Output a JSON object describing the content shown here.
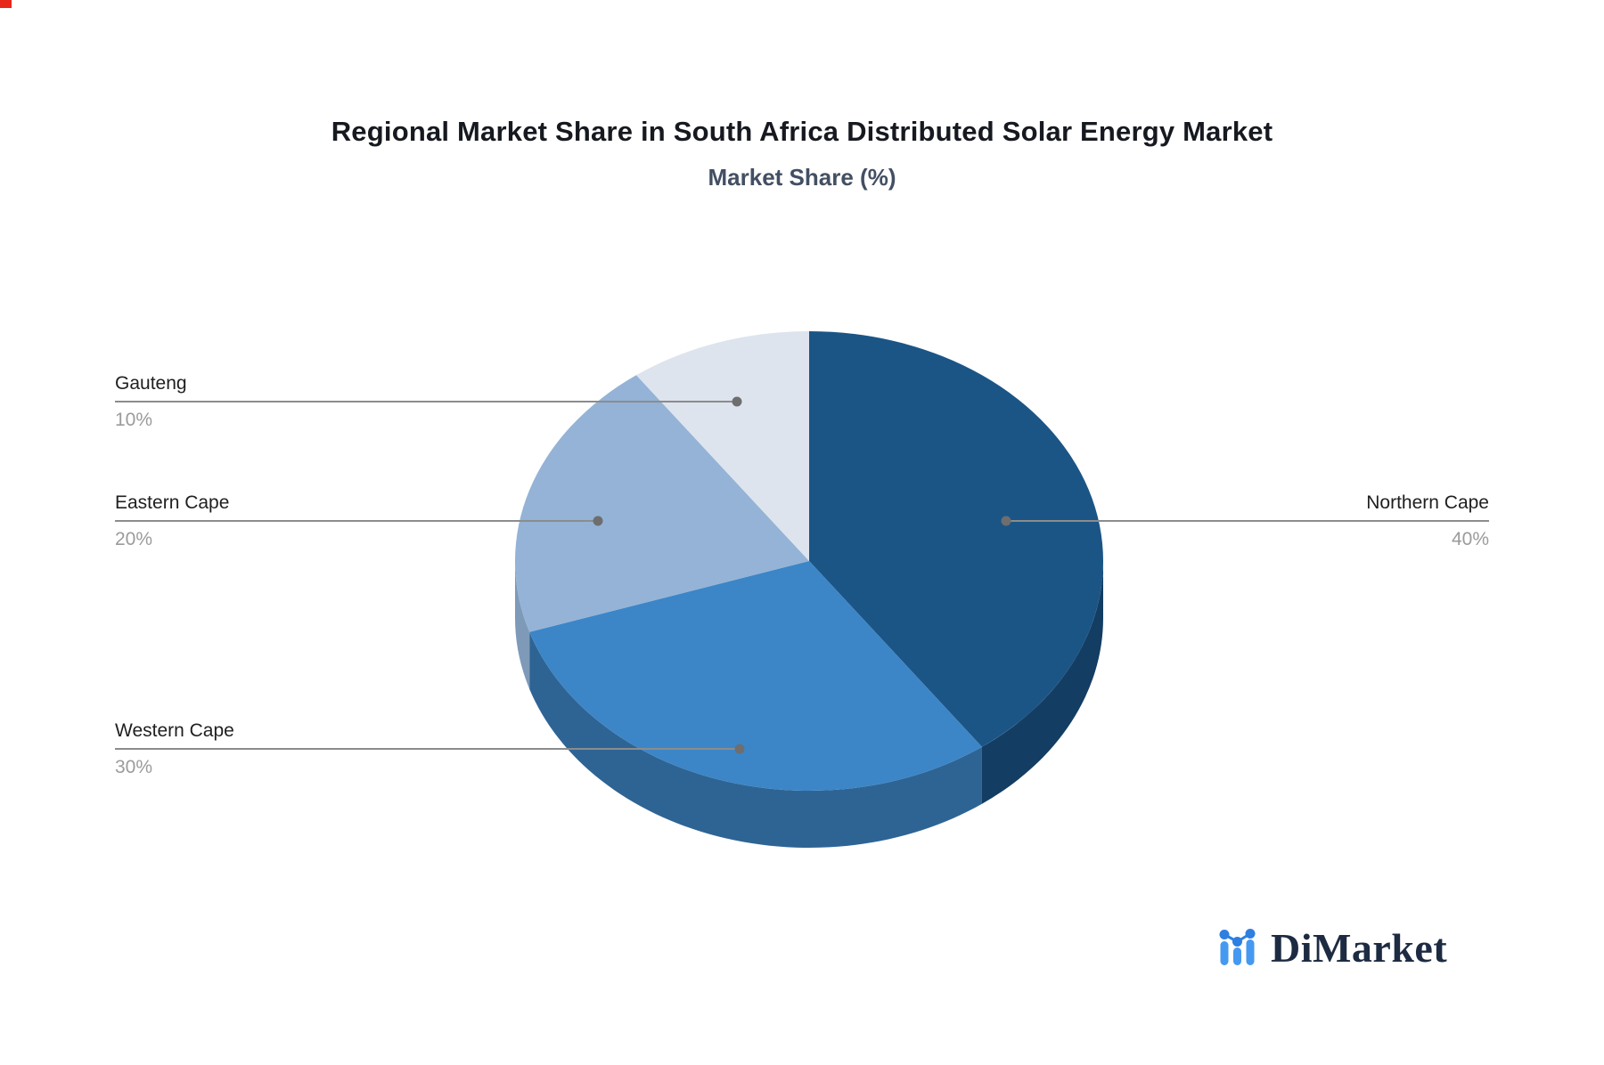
{
  "page": {
    "background": "#ffffff",
    "corner_marker_color": "#e8271c"
  },
  "chart_data": {
    "type": "pie",
    "title": "Regional Market Share in South Africa Distributed Solar Energy Market",
    "subtitle": "Market Share (%)",
    "unit": "%",
    "effect": "3d",
    "start_angle_deg": 0,
    "direction": "clockwise",
    "legend": "none",
    "leader_line_color": "#8c8c8c",
    "leader_dot_color": "#6e6e6e",
    "slices": [
      {
        "name": "Northern Cape",
        "value": 40,
        "pct_label": "40%",
        "color": "#1b5586",
        "side_color": "#133d62",
        "label_side": "right"
      },
      {
        "name": "Western Cape",
        "value": 30,
        "pct_label": "30%",
        "color": "#3c86c7",
        "side_color": "#2e6494",
        "label_side": "left"
      },
      {
        "name": "Eastern Cape",
        "value": 20,
        "pct_label": "20%",
        "color": "#94b3d6",
        "side_color": "#7e9ab8",
        "label_side": "left"
      },
      {
        "name": "Gauteng",
        "value": 10,
        "pct_label": "10%",
        "color": "#dde4ee",
        "side_color": "#c2cddc",
        "label_side": "left"
      }
    ]
  },
  "brand": {
    "name": "DiMarket",
    "icon": "bar-line-chart-logo-icon",
    "icon_color": "#4599f1",
    "icon_accent_color": "#2e7fe0",
    "text_color": "#1d2b42"
  }
}
